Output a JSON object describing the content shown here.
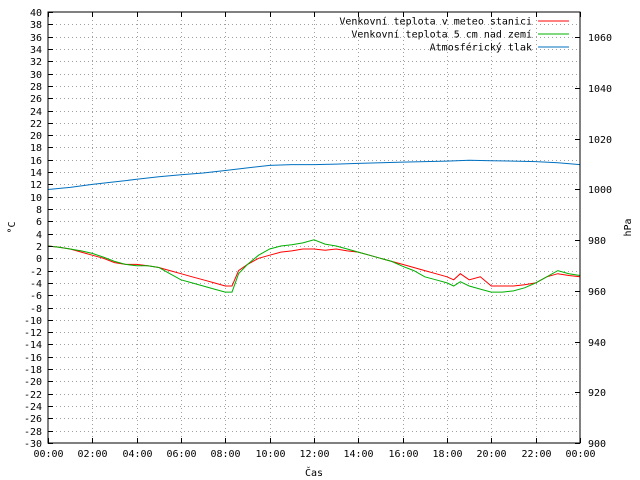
{
  "chart_data": {
    "type": "line",
    "xlabel": "Čas",
    "ylabel_left": "°C",
    "ylabel_right": "hPa",
    "grid": true,
    "legend_position": "top-right",
    "x_ticks": [
      "00:00",
      "02:00",
      "04:00",
      "06:00",
      "08:00",
      "10:00",
      "12:00",
      "14:00",
      "16:00",
      "18:00",
      "20:00",
      "22:00",
      "00:00"
    ],
    "x_range_hours": [
      0,
      24
    ],
    "ylim_left": [
      -30,
      40
    ],
    "y_step_left": 2,
    "ylim_right": [
      900,
      1070
    ],
    "y_ticks_right": [
      900,
      920,
      940,
      960,
      980,
      1000,
      1020,
      1040,
      1060
    ],
    "series": [
      {
        "name": "Venkovní teplota v meteo stanici",
        "color": "#ff0000",
        "axis": "left",
        "x": [
          0,
          0.5,
          1,
          1.5,
          2,
          2.5,
          3,
          3.5,
          4,
          4.5,
          5,
          5.5,
          6,
          6.5,
          7,
          7.5,
          8,
          8.3,
          8.6,
          9,
          9.5,
          10,
          10.5,
          11,
          11.5,
          12,
          12.5,
          13,
          13.5,
          14,
          14.5,
          15,
          15.5,
          16,
          16.5,
          17,
          17.5,
          18,
          18.3,
          18.6,
          19,
          19.5,
          20,
          20.5,
          21,
          21.5,
          22,
          22.5,
          23,
          23.5,
          24
        ],
        "values": [
          2.0,
          1.8,
          1.5,
          1.0,
          0.5,
          0,
          -0.7,
          -1.0,
          -1.0,
          -1.2,
          -1.5,
          -2.0,
          -2.5,
          -3.0,
          -3.5,
          -4.0,
          -4.5,
          -4.5,
          -2.0,
          -1.0,
          0.0,
          0.5,
          1.0,
          1.2,
          1.5,
          1.5,
          1.3,
          1.5,
          1.2,
          1.0,
          0.5,
          0.0,
          -0.5,
          -1.0,
          -1.5,
          -2.0,
          -2.5,
          -3.0,
          -3.5,
          -2.5,
          -3.5,
          -3.0,
          -4.5,
          -4.5,
          -4.5,
          -4.3,
          -4.0,
          -3.0,
          -2.5,
          -2.8,
          -3.0
        ]
      },
      {
        "name": "Venkovní teplota 5 cm nad zemí",
        "color": "#00b000",
        "axis": "left",
        "x": [
          0,
          0.5,
          1,
          1.5,
          2,
          2.5,
          3,
          3.5,
          4,
          4.5,
          5,
          5.5,
          6,
          6.5,
          7,
          7.5,
          8,
          8.3,
          8.6,
          9,
          9.5,
          10,
          10.5,
          11,
          11.5,
          12,
          12.5,
          13,
          13.5,
          14,
          14.5,
          15,
          15.5,
          16,
          16.5,
          17,
          17.5,
          18,
          18.3,
          18.6,
          19,
          19.5,
          20,
          20.5,
          21,
          21.5,
          22,
          22.5,
          23,
          23.5,
          24
        ],
        "values": [
          2.0,
          1.8,
          1.5,
          1.2,
          0.8,
          0.2,
          -0.5,
          -1.0,
          -1.2,
          -1.2,
          -1.5,
          -2.5,
          -3.5,
          -4.0,
          -4.5,
          -5.0,
          -5.5,
          -5.5,
          -2.5,
          -1.0,
          0.5,
          1.5,
          2.0,
          2.2,
          2.5,
          3.0,
          2.3,
          2.0,
          1.5,
          1.0,
          0.5,
          0.0,
          -0.5,
          -1.3,
          -2.0,
          -3.0,
          -3.5,
          -4.0,
          -4.5,
          -3.8,
          -4.5,
          -5.0,
          -5.5,
          -5.5,
          -5.3,
          -4.8,
          -4.0,
          -3.0,
          -2.0,
          -2.5,
          -2.8
        ]
      },
      {
        "name": "Atmosférický tlak",
        "color": "#0070c0",
        "axis": "right",
        "x": [
          0,
          1,
          2,
          3,
          4,
          5,
          6,
          7,
          8,
          9,
          10,
          11,
          12,
          13,
          14,
          15,
          16,
          17,
          18,
          19,
          20,
          21,
          22,
          23,
          24
        ],
        "values": [
          1000.0,
          1000.8,
          1002.0,
          1003.0,
          1004.0,
          1005.0,
          1005.8,
          1006.5,
          1007.5,
          1008.5,
          1009.5,
          1009.8,
          1009.8,
          1010.0,
          1010.3,
          1010.5,
          1010.8,
          1011.0,
          1011.2,
          1011.5,
          1011.3,
          1011.2,
          1011.0,
          1010.5,
          1009.8
        ]
      }
    ]
  }
}
